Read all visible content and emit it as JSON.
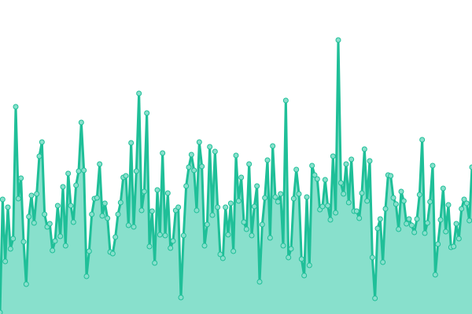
{
  "chart_data": {
    "type": "area",
    "title": "",
    "xlabel": "",
    "ylabel": "",
    "axes_visible": false,
    "grid": false,
    "markers": true,
    "ylim": [
      0,
      400
    ],
    "colors": {
      "line": "#1fbf98",
      "fill": "#88e0cc",
      "marker_fill": "#88e0cc",
      "marker_stroke": "#1fbf98"
    },
    "values": [
      2,
      146,
      67,
      136,
      83,
      96,
      264,
      147,
      173,
      92,
      38,
      124,
      151,
      116,
      153,
      201,
      219,
      127,
      111,
      115,
      81,
      93,
      138,
      99,
      162,
      87,
      179,
      138,
      117,
      164,
      182,
      244,
      183,
      48,
      80,
      127,
      147,
      148,
      191,
      125,
      141,
      122,
      79,
      77,
      98,
      127,
      142,
      174,
      176,
      113,
      218,
      111,
      182,
      281,
      132,
      156,
      256,
      86,
      131,
      65,
      158,
      101,
      205,
      100,
      154,
      84,
      93,
      132,
      136,
      21,
      100,
      163,
      187,
      203,
      183,
      132,
      219,
      188,
      87,
      114,
      213,
      126,
      207,
      136,
      76,
      71,
      136,
      101,
      141,
      80,
      202,
      144,
      174,
      117,
      108,
      191,
      100,
      137,
      163,
      41,
      114,
      148,
      196,
      97,
      214,
      149,
      143,
      153,
      87,
      272,
      72,
      83,
      147,
      184,
      153,
      70,
      49,
      149,
      62,
      189,
      177,
      172,
      133,
      137,
      171,
      138,
      120,
      201,
      129,
      349,
      167,
      153,
      191,
      142,
      197,
      131,
      131,
      122,
      154,
      210,
      144,
      195,
      72,
      20,
      109,
      121,
      66,
      134,
      177,
      176,
      148,
      140,
      108,
      156,
      144,
      115,
      121,
      113,
      104,
      121,
      152,
      222,
      103,
      116,
      143,
      189,
      50,
      89,
      120,
      160,
      105,
      139,
      85,
      86,
      115,
      96,
      134,
      146,
      141,
      119,
      187
    ]
  }
}
